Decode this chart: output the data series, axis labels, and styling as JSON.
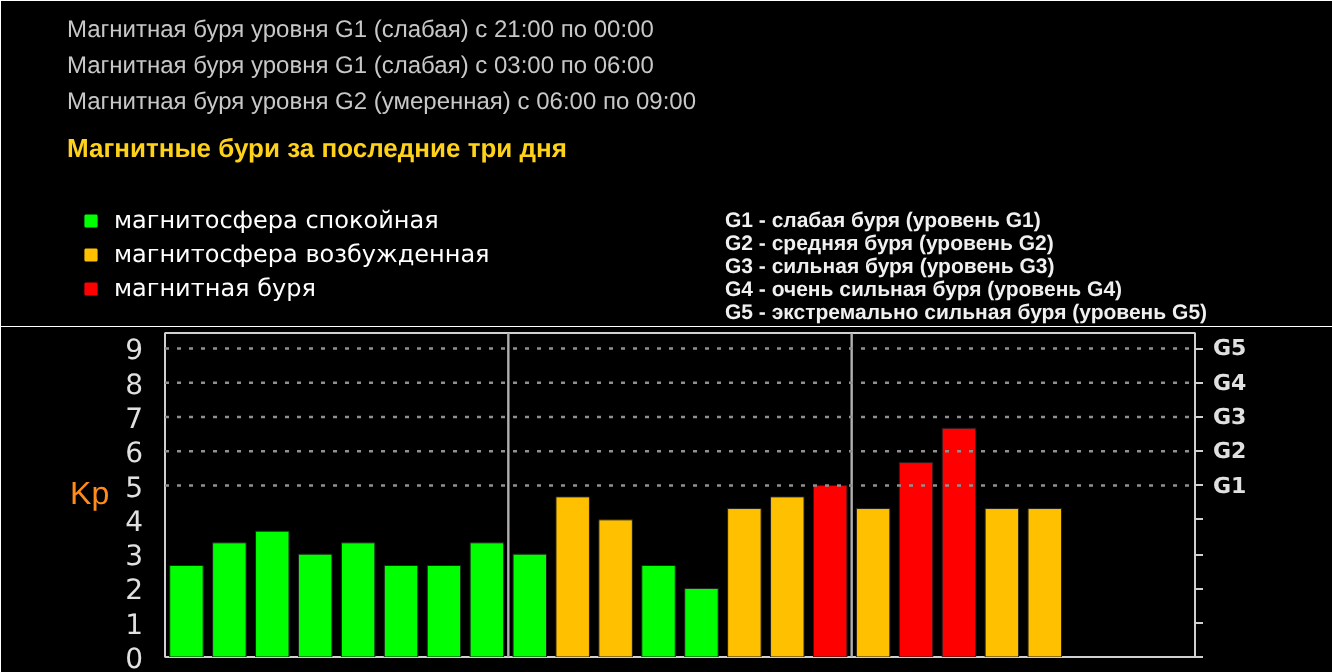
{
  "chart_data": {
    "type": "bar",
    "stacked": true,
    "title": "Магнитные бури за последние три дня",
    "ylabel": "Kp",
    "categories": [
      null,
      null,
      null,
      null,
      null,
      null,
      null,
      null,
      null,
      null,
      null,
      null,
      null,
      null,
      null,
      null,
      null,
      null,
      null,
      null,
      null
    ],
    "series": [
      {
        "name": "магнитосфера спокойная",
        "color": "#00ff00",
        "values": [
          2.67,
          3.33,
          3.67,
          3.0,
          3.33,
          2.67,
          2.67,
          3.33,
          3.0,
          null,
          null,
          2.67,
          2.0,
          null,
          null,
          null,
          null,
          null,
          null,
          null,
          null
        ]
      },
      {
        "name": "магнитосфера возбужденная",
        "color": "#ffc000",
        "values": [
          null,
          null,
          null,
          null,
          null,
          null,
          null,
          null,
          null,
          4.67,
          4.0,
          null,
          null,
          4.33,
          4.67,
          null,
          4.33,
          null,
          null,
          4.33,
          4.33
        ]
      },
      {
        "name": "магнитная буря",
        "color": "#ff0000",
        "values": [
          null,
          null,
          null,
          null,
          null,
          null,
          null,
          null,
          null,
          null,
          null,
          null,
          null,
          null,
          null,
          5.0,
          null,
          5.67,
          6.67,
          null,
          null
        ]
      }
    ],
    "ylim": [
      0,
      9.45
    ],
    "yticks": [
      0,
      1,
      2,
      3,
      4,
      5,
      6,
      7,
      8,
      9
    ],
    "ref_lines": [
      {
        "axis": "y",
        "value": 5,
        "label": "G1",
        "color": "#909090",
        "line_style": "dotted"
      },
      {
        "axis": "y",
        "value": 6,
        "label": "G2",
        "color": "#909090",
        "line_style": "dotted"
      },
      {
        "axis": "y",
        "value": 7,
        "label": "G3",
        "color": "#909090",
        "line_style": "dotted"
      },
      {
        "axis": "y",
        "value": 8,
        "label": "G4",
        "color": "#909090",
        "line_style": "dotted"
      },
      {
        "axis": "y",
        "value": 9,
        "label": "G5",
        "color": "#909090",
        "line_style": "dotted"
      }
    ],
    "legend": "top left",
    "grid": false,
    "annotations": [
      "Магнитная буря уровня G1 (слабая) с 21:00 по 00:00",
      "Магнитная буря уровня G1 (слабая) с 03:00 по 06:00",
      "Магнитная буря уровня G2 (умеренная) с 06:00 по 09:00",
      "G1 - слабая буря (уровень G1)",
      "G2 - средняя буря (уровень G2)",
      "G3 - сильная буря (уровень G3)",
      "G4 - очень сильная буря (уровень G4)",
      "G5 - экстремально сильная буря (уровень G5)"
    ]
  }
}
